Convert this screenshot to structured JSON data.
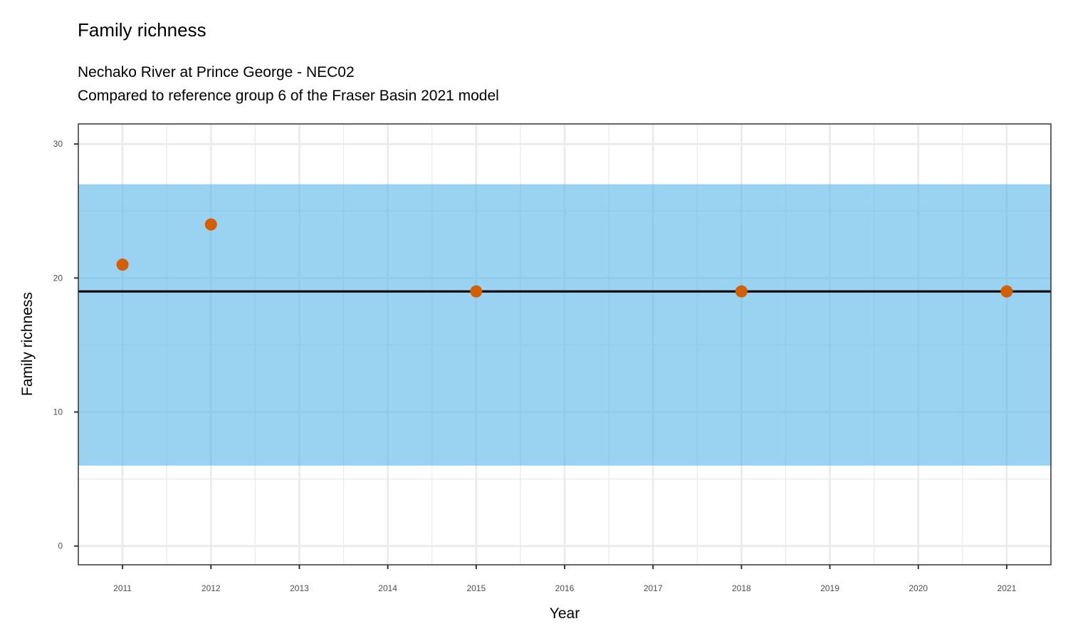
{
  "chart_data": {
    "type": "scatter",
    "title": "Family richness",
    "subtitle_lines": [
      "Nechako River at Prince George - NEC02",
      "Compared to reference group 6 of the Fraser Basin 2021 model"
    ],
    "xlabel": "Year",
    "ylabel": "Family richness",
    "xlim": [
      2010.5,
      2021.5
    ],
    "ylim": [
      -1.4,
      31.5
    ],
    "x_ticks": [
      2011,
      2012,
      2013,
      2014,
      2015,
      2016,
      2017,
      2018,
      2019,
      2020,
      2021
    ],
    "y_ticks": [
      0,
      10,
      20,
      30
    ],
    "grid": true,
    "reference_band": {
      "low": 6,
      "high": 27,
      "color": "#56B4E9"
    },
    "reference_line": {
      "value": 19,
      "color": "#000000"
    },
    "points": {
      "x": [
        2011,
        2012,
        2015,
        2018,
        2021
      ],
      "y": [
        21,
        24,
        19,
        19,
        19
      ],
      "color": "#D55E00"
    }
  }
}
